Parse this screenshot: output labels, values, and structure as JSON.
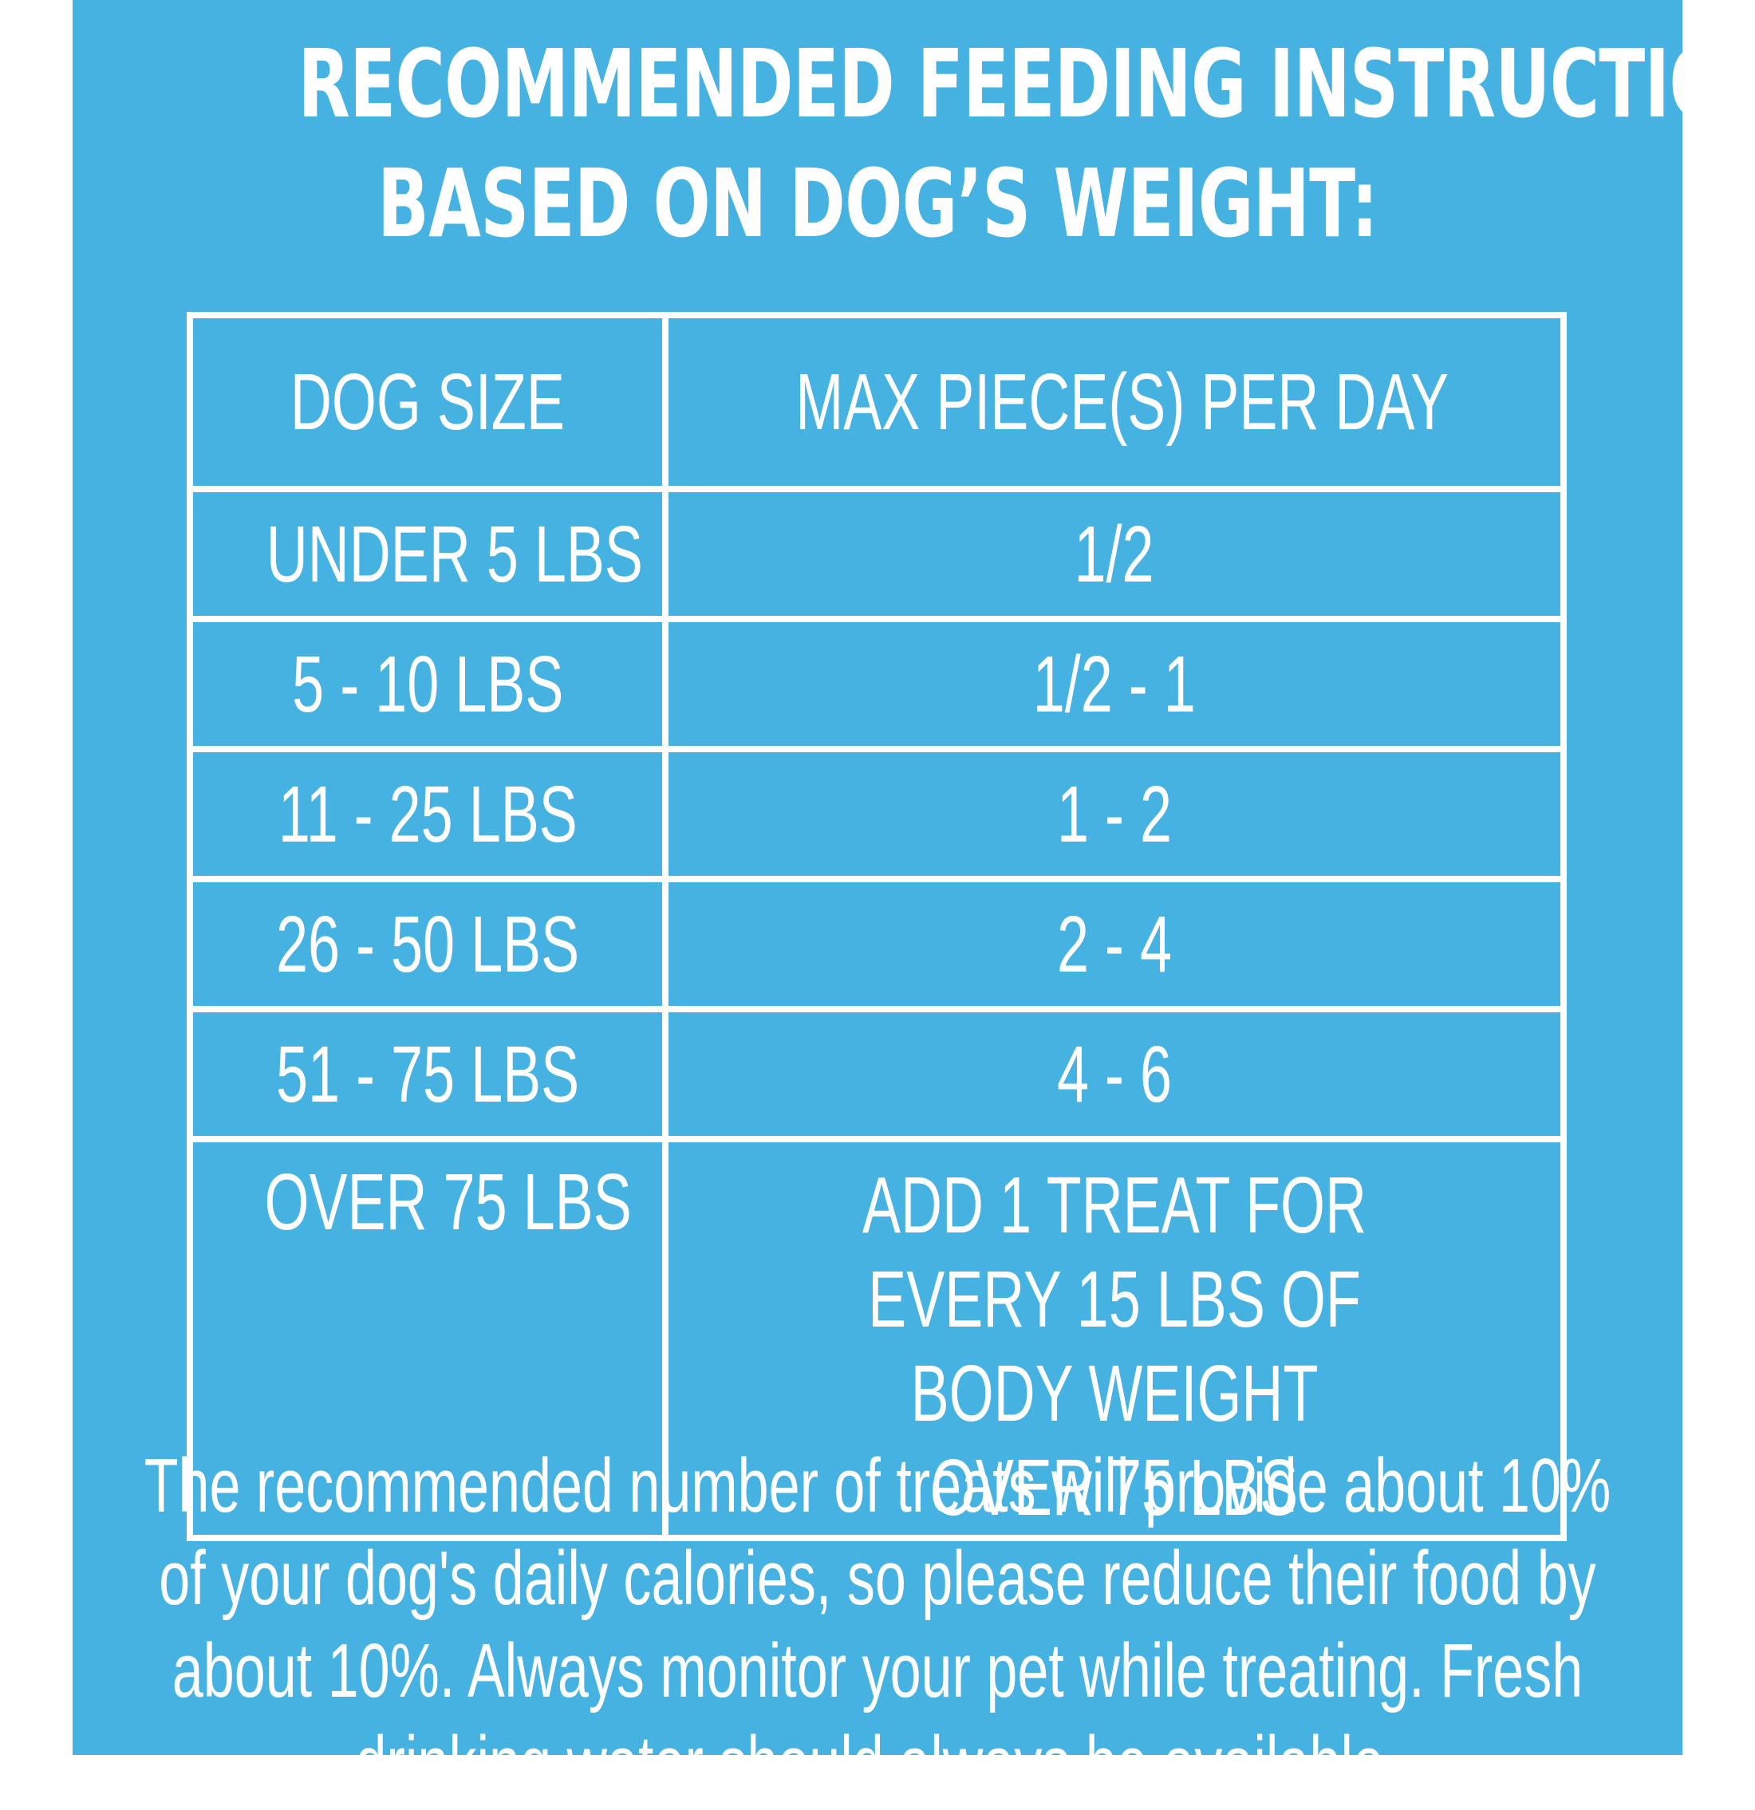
{
  "title": {
    "line1": "RECOMMENDED FEEDING INSTRUCTIONS",
    "line2": "BASED ON DOG’S WEIGHT:"
  },
  "table": {
    "headers": [
      "DOG SIZE",
      "MAX PIECE(S) PER DAY"
    ],
    "rows": [
      [
        "UNDER 5 LBS",
        "1/2"
      ],
      [
        "5 - 10 LBS",
        "1/2 - 1"
      ],
      [
        "11 - 25 LBS",
        "1 - 2"
      ],
      [
        "26 - 50 LBS",
        "2 - 4"
      ],
      [
        "51 - 75 LBS",
        "4 - 6"
      ],
      [
        "OVER 75 LBS",
        "ADD 1 TREAT FOR EVERY 15 LBS OF BODY WEIGHT OVER 75 LBS"
      ]
    ]
  },
  "footnote": "The recommended number of treats will provide about 10% of your dog's daily calories, so please reduce their food by about 10%. Always monitor your pet while treating. Fresh drinking water should always be available.",
  "colors": {
    "background": "#45b2e2",
    "text": "#ffffff"
  }
}
